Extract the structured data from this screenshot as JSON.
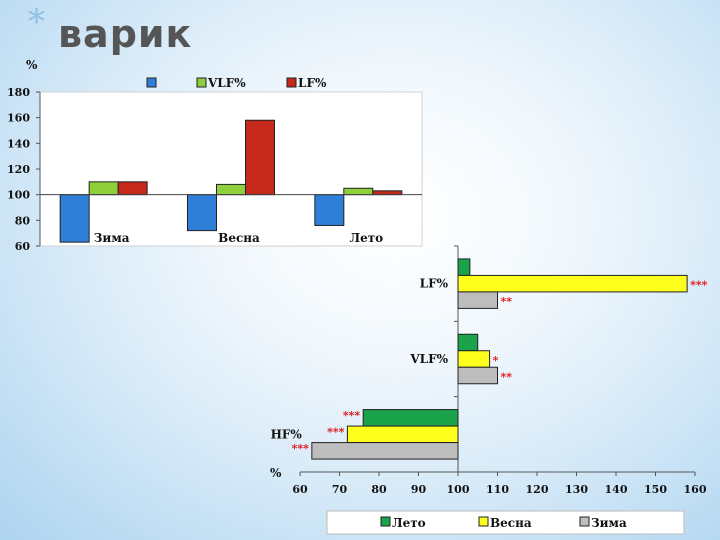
{
  "slide": {
    "star": "*",
    "title": "варик"
  },
  "chart_data": [
    {
      "type": "bar",
      "ylabel": "%",
      "ylim": [
        60,
        180
      ],
      "yticks": [
        60,
        80,
        100,
        120,
        140,
        160,
        180
      ],
      "baseline": 100,
      "categories": [
        "Зима",
        "Весна",
        "Лето"
      ],
      "series": [
        {
          "name": "",
          "color": "#2f7fd8",
          "values": [
            63,
            72,
            76
          ]
        },
        {
          "name": "VLF%",
          "color": "#8fcf3c",
          "values": [
            110,
            108,
            105
          ]
        },
        {
          "name": "LF%",
          "color": "#c5291b",
          "values": [
            110,
            158,
            103
          ]
        }
      ],
      "legend": "top"
    },
    {
      "type": "bar",
      "orientation": "horizontal",
      "xlabel": "%",
      "xlim": [
        60,
        160
      ],
      "xticks": [
        60,
        70,
        80,
        90,
        100,
        110,
        120,
        130,
        140,
        150,
        160
      ],
      "baseline": 100,
      "categories": [
        "LF%",
        "VLF%",
        "HF%"
      ],
      "series": [
        {
          "name": "Лето",
          "color": "#1aa34a",
          "values": [
            103,
            105,
            76
          ]
        },
        {
          "name": "Весна",
          "color": "#ffff1e",
          "values": [
            158,
            108,
            72
          ]
        },
        {
          "name": "Зима",
          "color": "#bdbdbd",
          "values": [
            110,
            110,
            63
          ]
        }
      ],
      "annotations": [
        {
          "category": "LF%",
          "series": "Весна",
          "text": "***"
        },
        {
          "category": "LF%",
          "series": "Зима",
          "text": "**"
        },
        {
          "category": "VLF%",
          "series": "Весна",
          "text": "*"
        },
        {
          "category": "VLF%",
          "series": "Зима",
          "text": "**"
        },
        {
          "category": "HF%",
          "series": "Лето",
          "text": "***"
        },
        {
          "category": "HF%",
          "series": "Весна",
          "text": "***"
        },
        {
          "category": "HF%",
          "series": "Зима",
          "text": "***"
        }
      ],
      "annotation_color": "#e01010",
      "legend": "bottom"
    }
  ]
}
